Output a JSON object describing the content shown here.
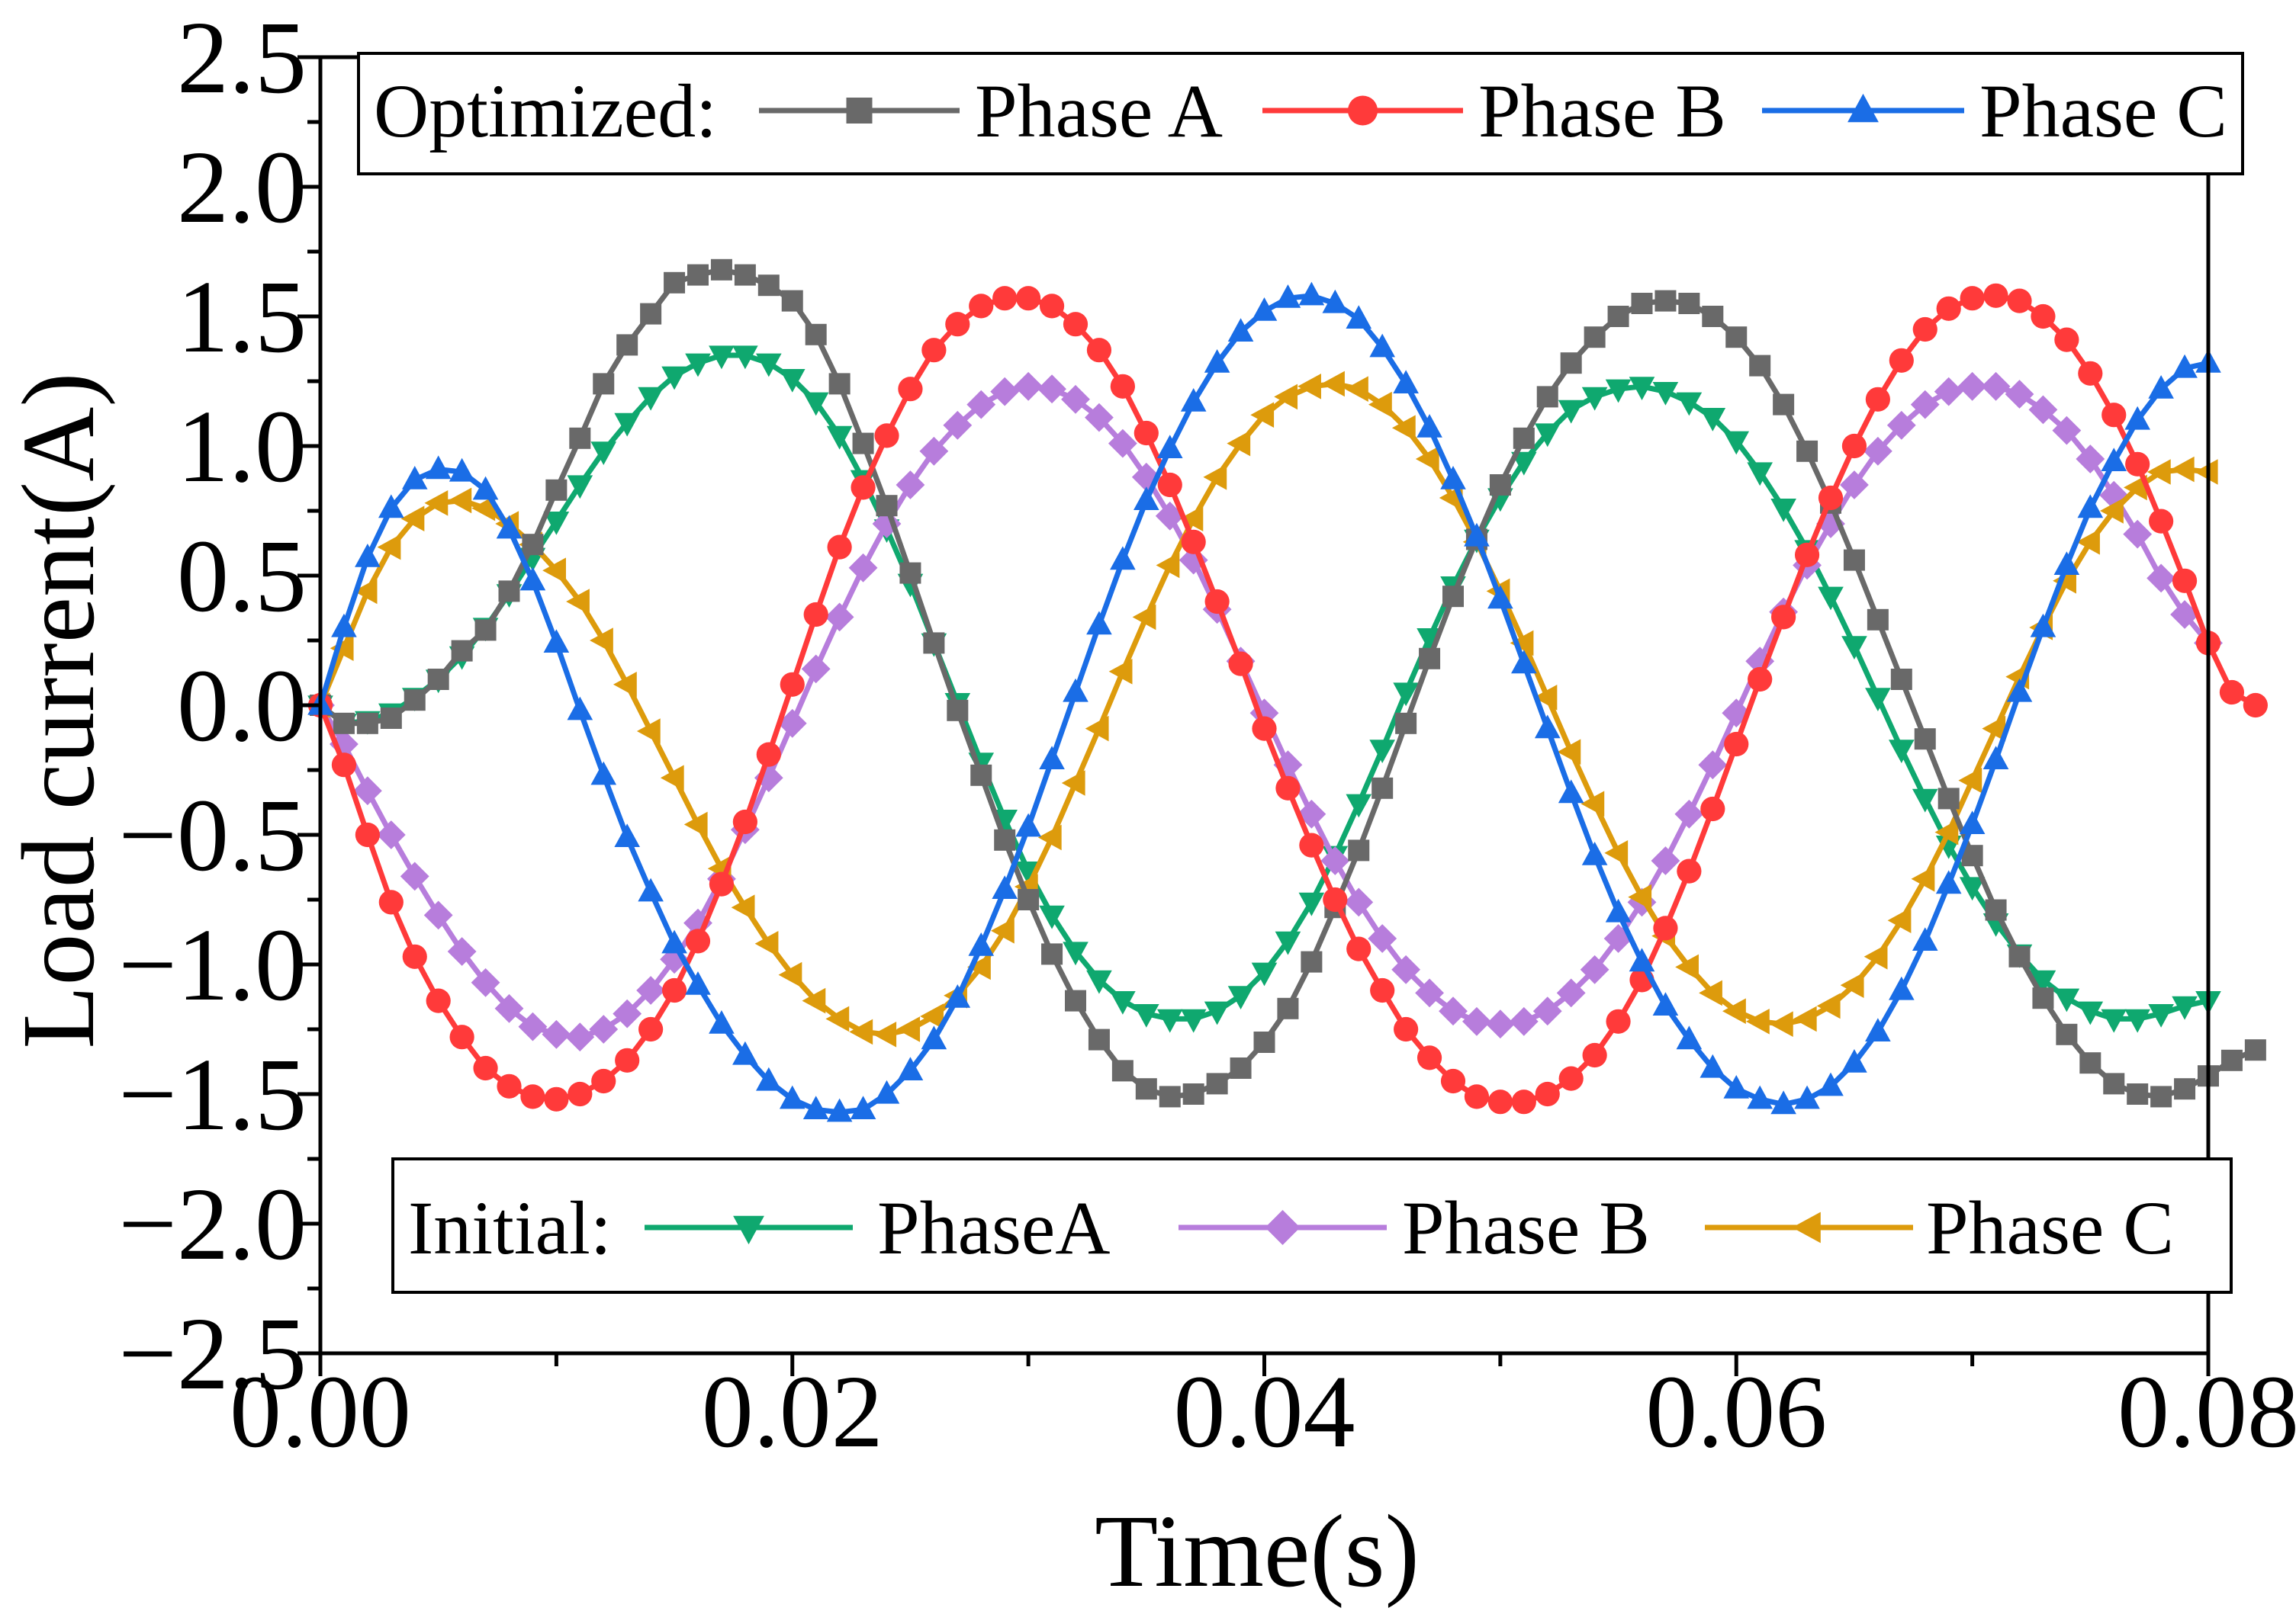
{
  "chart_data": {
    "type": "line",
    "title": "",
    "xlabel": "Time(s)",
    "ylabel": "Load current(A)",
    "xlim": [
      0,
      0.08
    ],
    "ylim": [
      -2.5,
      2.5
    ],
    "x_ticks": [
      0,
      0.02,
      0.04,
      0.06,
      0.08
    ],
    "x_tick_labels": [
      "0.00",
      "0.02",
      "0.04",
      "0.06",
      "0.08"
    ],
    "y_ticks": [
      2.5,
      2.0,
      1.5,
      1.0,
      0.5,
      0.0,
      -0.5,
      -1.0,
      -1.5,
      -2.0,
      -2.5
    ],
    "y_tick_labels": [
      "2.5",
      "2.0",
      "1.5",
      "1.0",
      "0.5",
      "0.0",
      "−0.5",
      "−1.0",
      "−1.5",
      "−2.0",
      "−2.5"
    ],
    "grid": false,
    "legends": [
      {
        "group": "optimized",
        "title": "Optimized:",
        "position": "top",
        "entries": [
          "Phase A",
          "Phase B",
          "Phase C"
        ]
      },
      {
        "group": "initial",
        "title": "Initial:",
        "position": "bottom",
        "entries": [
          "PhaseA",
          "Phase B",
          "Phase C"
        ]
      }
    ],
    "sample_interval_s": 0.001,
    "series": [
      {
        "name": "Phase A",
        "group": "optimized",
        "color": "#696969",
        "marker": "square",
        "values": [
          0.0,
          -0.07,
          -0.07,
          -0.05,
          0.02,
          0.1,
          0.21,
          0.29,
          0.44,
          0.62,
          0.83,
          1.03,
          1.24,
          1.39,
          1.51,
          1.63,
          1.66,
          1.68,
          1.66,
          1.62,
          1.56,
          1.43,
          1.24,
          1.01,
          0.77,
          0.51,
          0.24,
          -0.02,
          -0.27,
          -0.52,
          -0.75,
          -0.96,
          -1.14,
          -1.29,
          -1.41,
          -1.48,
          -1.51,
          -1.5,
          -1.46,
          -1.4,
          -1.3,
          -1.17,
          -0.99,
          -0.78,
          -0.56,
          -0.32,
          -0.07,
          0.18,
          0.42,
          0.64,
          0.85,
          1.03,
          1.19,
          1.32,
          1.42,
          1.5,
          1.55,
          1.56,
          1.55,
          1.5,
          1.42,
          1.31,
          1.16,
          0.98,
          0.78,
          0.56,
          0.33,
          0.1,
          -0.13,
          -0.36,
          -0.58,
          -0.79,
          -0.97,
          -1.13,
          -1.27,
          -1.38,
          -1.46,
          -1.5,
          -1.51,
          -1.48,
          -1.43,
          -1.37,
          -1.33
        ]
      },
      {
        "name": "Phase B",
        "group": "optimized",
        "color": "#ff3a3a",
        "marker": "circle",
        "values": [
          0.0,
          -0.23,
          -0.5,
          -0.76,
          -0.97,
          -1.14,
          -1.28,
          -1.4,
          -1.47,
          -1.51,
          -1.52,
          -1.5,
          -1.45,
          -1.37,
          -1.25,
          -1.1,
          -0.91,
          -0.69,
          -0.45,
          -0.19,
          0.08,
          0.35,
          0.61,
          0.84,
          1.04,
          1.22,
          1.37,
          1.47,
          1.54,
          1.57,
          1.57,
          1.54,
          1.47,
          1.37,
          1.23,
          1.05,
          0.85,
          0.63,
          0.4,
          0.16,
          -0.09,
          -0.32,
          -0.54,
          -0.75,
          -0.94,
          -1.1,
          -1.25,
          -1.36,
          -1.45,
          -1.51,
          -1.53,
          -1.53,
          -1.5,
          -1.44,
          -1.35,
          -1.22,
          -1.06,
          -0.86,
          -0.64,
          -0.4,
          -0.15,
          0.1,
          0.34,
          0.58,
          0.8,
          1.0,
          1.18,
          1.33,
          1.45,
          1.53,
          1.57,
          1.58,
          1.56,
          1.5,
          1.41,
          1.28,
          1.12,
          0.93,
          0.71,
          0.48,
          0.24,
          0.05,
          0.0
        ]
      },
      {
        "name": "Phase C",
        "group": "optimized",
        "color": "#1a6de6",
        "marker": "triangle-up",
        "values": [
          0.0,
          0.3,
          0.57,
          0.76,
          0.87,
          0.91,
          0.9,
          0.83,
          0.68,
          0.48,
          0.24,
          -0.02,
          -0.27,
          -0.51,
          -0.72,
          -0.92,
          -1.08,
          -1.23,
          -1.35,
          -1.45,
          -1.52,
          -1.56,
          -1.57,
          -1.56,
          -1.5,
          -1.41,
          -1.29,
          -1.13,
          -0.93,
          -0.71,
          -0.47,
          -0.21,
          0.05,
          0.31,
          0.56,
          0.79,
          0.99,
          1.17,
          1.32,
          1.44,
          1.52,
          1.57,
          1.58,
          1.55,
          1.49,
          1.38,
          1.24,
          1.07,
          0.87,
          0.65,
          0.41,
          0.16,
          -0.09,
          -0.34,
          -0.58,
          -0.8,
          -0.99,
          -1.16,
          -1.29,
          -1.4,
          -1.48,
          -1.52,
          -1.54,
          -1.52,
          -1.47,
          -1.38,
          -1.26,
          -1.1,
          -0.91,
          -0.69,
          -0.46,
          -0.21,
          0.05,
          0.3,
          0.54,
          0.76,
          0.94,
          1.1,
          1.22,
          1.3,
          1.32
        ]
      },
      {
        "name": "PhaseA",
        "group": "initial",
        "color": "#0fa86f",
        "marker": "triangle-down",
        "values": [
          0.0,
          -0.07,
          -0.06,
          -0.03,
          0.03,
          0.1,
          0.19,
          0.3,
          0.43,
          0.57,
          0.71,
          0.85,
          0.98,
          1.09,
          1.19,
          1.27,
          1.32,
          1.35,
          1.35,
          1.32,
          1.26,
          1.17,
          1.04,
          0.87,
          0.68,
          0.47,
          0.24,
          0.01,
          -0.22,
          -0.44,
          -0.64,
          -0.81,
          -0.95,
          -1.06,
          -1.14,
          -1.19,
          -1.21,
          -1.21,
          -1.18,
          -1.12,
          -1.03,
          -0.91,
          -0.76,
          -0.58,
          -0.38,
          -0.17,
          0.05,
          0.26,
          0.46,
          0.64,
          0.8,
          0.94,
          1.05,
          1.14,
          1.19,
          1.22,
          1.23,
          1.21,
          1.17,
          1.11,
          1.02,
          0.9,
          0.76,
          0.6,
          0.42,
          0.23,
          0.03,
          -0.17,
          -0.36,
          -0.54,
          -0.7,
          -0.84,
          -0.96,
          -1.06,
          -1.13,
          -1.18,
          -1.21,
          -1.21,
          -1.19,
          -1.16,
          -1.14
        ]
      },
      {
        "name": "Phase B",
        "group": "initial",
        "color": "#b77ddc",
        "marker": "diamond",
        "values": [
          0.0,
          -0.15,
          -0.33,
          -0.5,
          -0.66,
          -0.81,
          -0.95,
          -1.07,
          -1.17,
          -1.24,
          -1.27,
          -1.28,
          -1.25,
          -1.19,
          -1.1,
          -0.98,
          -0.84,
          -0.67,
          -0.48,
          -0.28,
          -0.07,
          0.14,
          0.34,
          0.53,
          0.7,
          0.85,
          0.98,
          1.08,
          1.16,
          1.21,
          1.23,
          1.22,
          1.18,
          1.11,
          1.01,
          0.88,
          0.73,
          0.56,
          0.37,
          0.17,
          -0.03,
          -0.23,
          -0.42,
          -0.6,
          -0.76,
          -0.9,
          -1.02,
          -1.11,
          -1.18,
          -1.22,
          -1.23,
          -1.22,
          -1.18,
          -1.11,
          -1.02,
          -0.9,
          -0.76,
          -0.6,
          -0.42,
          -0.23,
          -0.03,
          0.17,
          0.36,
          0.54,
          0.7,
          0.85,
          0.98,
          1.08,
          1.16,
          1.21,
          1.23,
          1.23,
          1.2,
          1.14,
          1.06,
          0.95,
          0.81,
          0.66,
          0.49,
          0.35,
          0.24
        ]
      },
      {
        "name": "Phase C",
        "group": "initial",
        "color": "#dd9b0c",
        "marker": "triangle-left",
        "values": [
          0.0,
          0.22,
          0.44,
          0.61,
          0.72,
          0.78,
          0.79,
          0.76,
          0.7,
          0.62,
          0.52,
          0.4,
          0.25,
          0.08,
          -0.1,
          -0.28,
          -0.46,
          -0.63,
          -0.78,
          -0.92,
          -1.04,
          -1.14,
          -1.21,
          -1.26,
          -1.27,
          -1.25,
          -1.2,
          -1.12,
          -1.01,
          -0.87,
          -0.7,
          -0.51,
          -0.3,
          -0.09,
          0.13,
          0.34,
          0.54,
          0.72,
          0.88,
          1.01,
          1.12,
          1.19,
          1.23,
          1.24,
          1.22,
          1.16,
          1.07,
          0.95,
          0.8,
          0.63,
          0.44,
          0.24,
          0.03,
          -0.18,
          -0.38,
          -0.57,
          -0.74,
          -0.89,
          -1.01,
          -1.11,
          -1.18,
          -1.22,
          -1.23,
          -1.21,
          -1.16,
          -1.08,
          -0.97,
          -0.83,
          -0.67,
          -0.49,
          -0.29,
          -0.09,
          0.11,
          0.3,
          0.48,
          0.63,
          0.75,
          0.84,
          0.9,
          0.91,
          0.9
        ]
      }
    ]
  }
}
